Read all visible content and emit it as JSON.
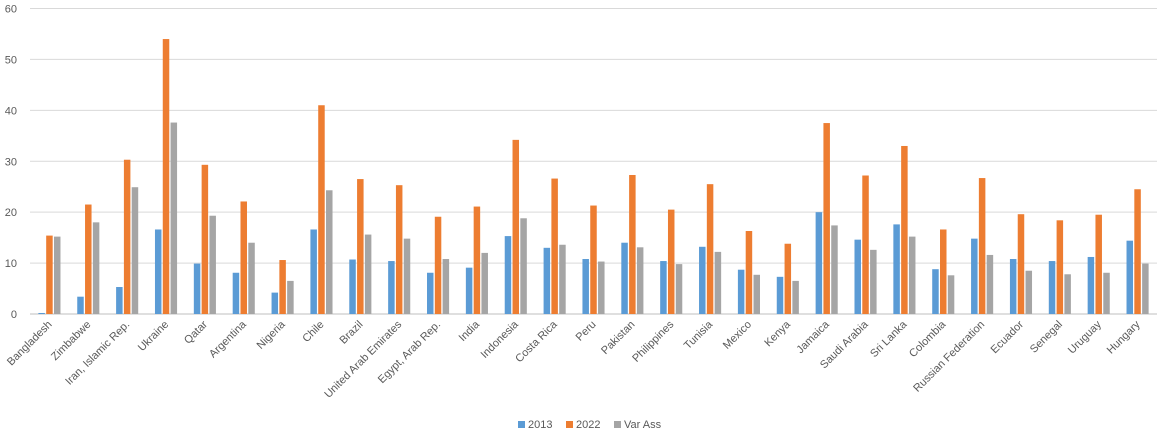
{
  "chart_data": {
    "type": "bar",
    "title": "",
    "xlabel": "",
    "ylabel": "",
    "ylim": [
      0,
      60
    ],
    "yticks": [
      0,
      10,
      20,
      30,
      40,
      50,
      60
    ],
    "grid": true,
    "legend_position": "bottom",
    "categories": [
      "Bangladesh",
      "Zimbabwe",
      "Iran, Islamic Rep.",
      "Ukraine",
      "Qatar",
      "Argentina",
      "Nigeria",
      "Chile",
      "Brazil",
      "United Arab Emirates",
      "Egypt, Arab Rep.",
      "India",
      "Indonesia",
      "Costa Rica",
      "Peru",
      "Pakistan",
      "Philippines",
      "Tunisia",
      "Mexico",
      "Kenya",
      "Jamaica",
      "Saudi Arabia",
      "Sri Lanka",
      "Colombia",
      "Russian Federation",
      "Ecuador",
      "Senegal",
      "Uruguay",
      "Hungary"
    ],
    "series": [
      {
        "name": "2013",
        "color": "#5b9bd5",
        "values": [
          0.2,
          3.4,
          5.3,
          16.6,
          9.9,
          8.1,
          4.2,
          16.6,
          10.7,
          10.4,
          8.1,
          9.1,
          15.3,
          13.0,
          10.8,
          14.0,
          10.4,
          13.2,
          8.7,
          7.3,
          20.0,
          14.6,
          17.6,
          8.8,
          14.8,
          10.8,
          10.4,
          11.2,
          14.4
        ]
      },
      {
        "name": "2022",
        "color": "#ed7d31",
        "values": [
          15.4,
          21.5,
          30.3,
          54.0,
          29.3,
          22.1,
          10.6,
          41.0,
          26.5,
          25.3,
          19.1,
          21.1,
          34.2,
          26.6,
          21.3,
          27.3,
          20.5,
          25.5,
          16.3,
          13.8,
          37.5,
          27.2,
          33.0,
          16.6,
          26.7,
          19.6,
          18.4,
          19.5,
          24.5
        ]
      },
      {
        "name": "Var Ass",
        "color": "#a5a5a5",
        "values": [
          15.2,
          18.0,
          24.9,
          37.6,
          19.3,
          14.0,
          6.5,
          24.3,
          15.6,
          14.8,
          10.8,
          12.0,
          18.8,
          13.6,
          10.3,
          13.1,
          9.8,
          12.2,
          7.7,
          6.5,
          17.4,
          12.6,
          15.2,
          7.6,
          11.6,
          8.5,
          7.8,
          8.1,
          9.9
        ]
      }
    ]
  }
}
